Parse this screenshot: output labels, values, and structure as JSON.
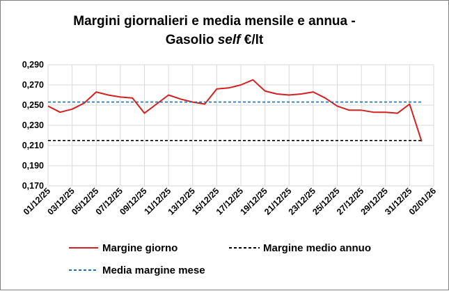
{
  "chart_data": {
    "type": "line",
    "title_line1": "Margini giornalieri e media mensile e annua -",
    "title_line2_prefix": "Gasolio ",
    "title_line2_italic": "self",
    "title_line2_suffix": " €/lt",
    "y_ticks": [
      "0,170",
      "0,190",
      "0,210",
      "0,230",
      "0,250",
      "0,270",
      "0,290"
    ],
    "ylim": [
      0.17,
      0.29
    ],
    "x_ticks": [
      "01/12/25",
      "03/12/25",
      "05/12/25",
      "07/12/25",
      "09/12/25",
      "11/12/25",
      "13/12/25",
      "15/12/25",
      "17/12/25",
      "19/12/25",
      "21/12/25",
      "23/12/25",
      "25/12/25",
      "27/12/25",
      "29/12/25",
      "31/12/25",
      "02/01/26"
    ],
    "x_days": 32,
    "grid": true,
    "legend_position": "bottom",
    "series": [
      {
        "name": "Margine giorno",
        "style": "solid",
        "color": "#d42020",
        "x": [
          0,
          1,
          2,
          3,
          4,
          5,
          6,
          7,
          8,
          9,
          10,
          11,
          12,
          13,
          14,
          15,
          16,
          17,
          18,
          19,
          20,
          21,
          22,
          23,
          24,
          25,
          26,
          27,
          28,
          29,
          30,
          31
        ],
        "values": [
          0.249,
          0.243,
          0.246,
          0.252,
          0.263,
          0.26,
          0.258,
          0.257,
          0.242,
          0.251,
          0.26,
          0.256,
          0.253,
          0.251,
          0.266,
          0.267,
          0.27,
          0.275,
          0.264,
          0.261,
          0.26,
          0.261,
          0.263,
          0.257,
          0.249,
          0.245,
          0.245,
          0.243,
          0.243,
          0.242,
          0.251,
          0.214
        ]
      },
      {
        "name": "Margine medio annuo",
        "style": "dashed",
        "color": "#000000",
        "x": [
          0,
          31
        ],
        "values": [
          0.215,
          0.215
        ]
      },
      {
        "name": "Media margine mese",
        "style": "dashed",
        "color": "#1f6fa8",
        "x": [
          0,
          31
        ],
        "values": [
          0.253,
          0.253
        ]
      }
    ]
  }
}
